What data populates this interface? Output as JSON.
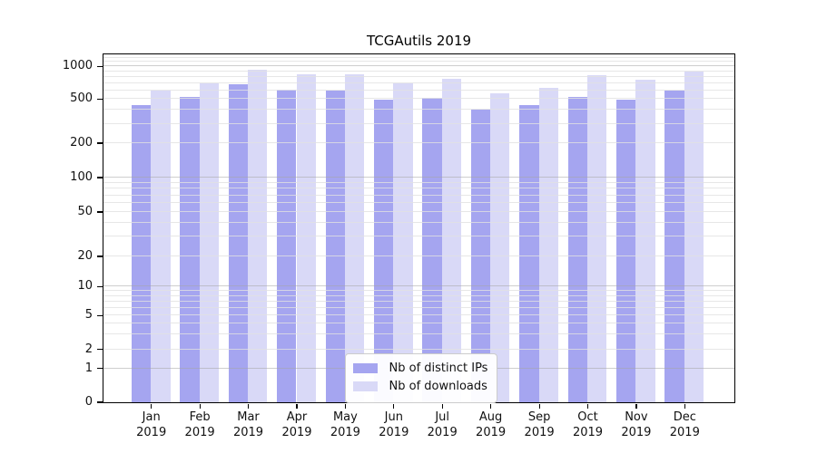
{
  "chart_data": {
    "type": "bar",
    "title": "TCGAutils 2019",
    "xlabel": "",
    "ylabel": "",
    "categories": [
      "Jan",
      "Feb",
      "Mar",
      "Apr",
      "May",
      "Jun",
      "Jul",
      "Aug",
      "Sep",
      "Oct",
      "Nov",
      "Dec"
    ],
    "category_year": "2019",
    "series": [
      {
        "name": "Nb of distinct IPs",
        "color": "#a5a5f0",
        "values": [
          435,
          520,
          675,
          600,
          590,
          485,
          510,
          400,
          440,
          520,
          485,
          590
        ]
      },
      {
        "name": "Nb of downloads",
        "color": "#d9d9f7",
        "values": [
          590,
          695,
          920,
          840,
          840,
          690,
          765,
          560,
          625,
          820,
          750,
          880
        ]
      }
    ],
    "yscale": "symlog",
    "yticks": [
      0,
      1,
      2,
      5,
      10,
      20,
      50,
      100,
      200,
      500,
      1000
    ],
    "ylim": [
      0,
      1290
    ],
    "grid": true,
    "legend_position": "lower center"
  }
}
